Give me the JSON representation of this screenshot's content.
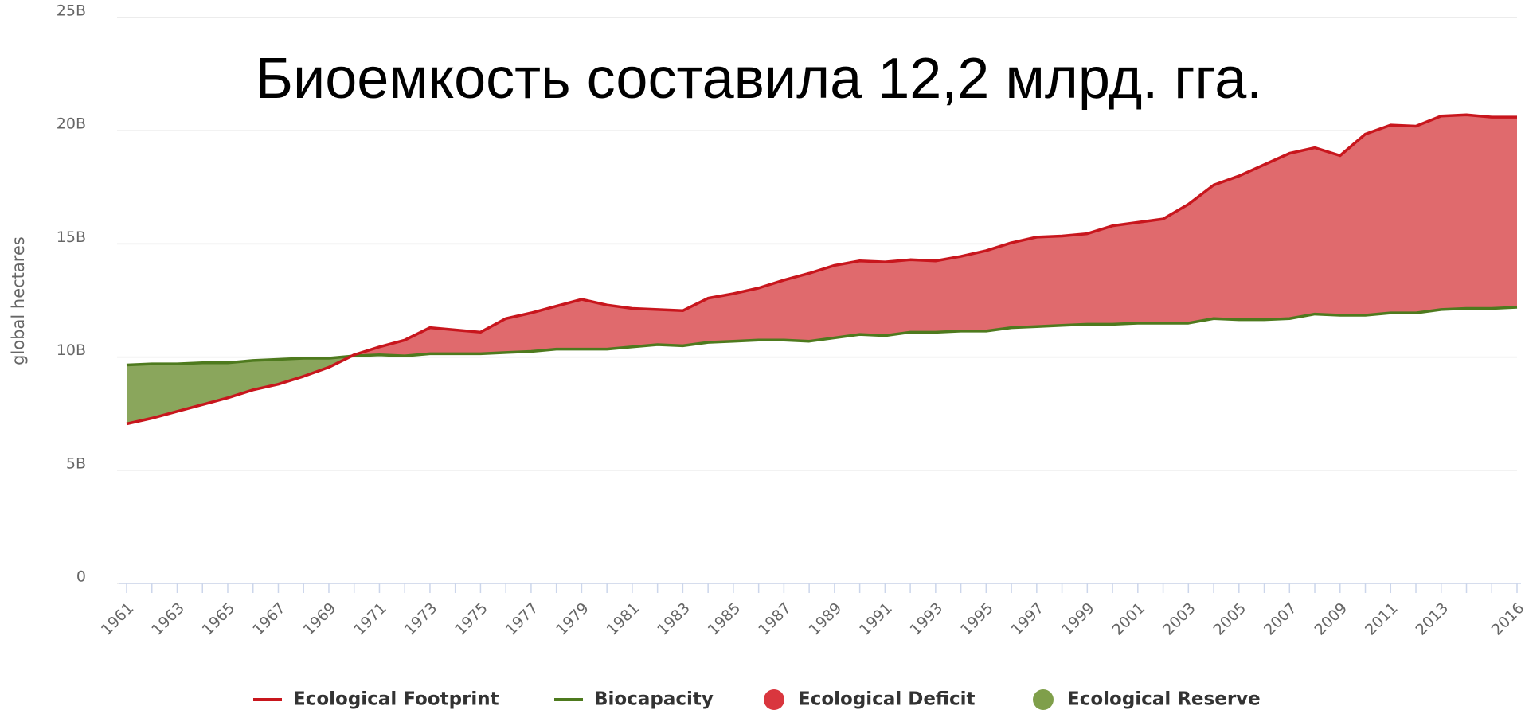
{
  "chart_data": {
    "type": "line",
    "title": "Биоемкость составила 12,2 млрд. гга.",
    "y_label": "global hectares",
    "x": [
      1961,
      1962,
      1963,
      1964,
      1965,
      1966,
      1967,
      1968,
      1969,
      1970,
      1971,
      1972,
      1973,
      1974,
      1975,
      1976,
      1977,
      1978,
      1979,
      1980,
      1981,
      1982,
      1983,
      1984,
      1985,
      1986,
      1987,
      1988,
      1989,
      1990,
      1991,
      1992,
      1993,
      1994,
      1995,
      1996,
      1997,
      1998,
      1999,
      2000,
      2001,
      2002,
      2003,
      2004,
      2005,
      2006,
      2007,
      2008,
      2009,
      2010,
      2011,
      2012,
      2013,
      2014,
      2015,
      2016
    ],
    "series": [
      {
        "name": "Ecological Footprint",
        "color": "#c8161d",
        "values": [
          7050000000.0,
          7300000000.0,
          7600000000.0,
          7900000000.0,
          8200000000.0,
          8550000000.0,
          8800000000.0,
          9150000000.0,
          9550000000.0,
          10100000000.0,
          10450000000.0,
          10750000000.0,
          11300000000.0,
          11200000000.0,
          11100000000.0,
          11700000000.0,
          11950000000.0,
          12250000000.0,
          12550000000.0,
          12300000000.0,
          12150000000.0,
          12100000000.0,
          12050000000.0,
          12600000000.0,
          12800000000.0,
          13050000000.0,
          13400000000.0,
          13700000000.0,
          14050000000.0,
          14250000000.0,
          14200000000.0,
          14300000000.0,
          14250000000.0,
          14450000000.0,
          14700000000.0,
          15050000000.0,
          15300000000.0,
          15350000000.0,
          15450000000.0,
          15800000000.0,
          15950000000.0,
          16100000000.0,
          16750000000.0,
          17600000000.0,
          18000000000.0,
          18500000000.0,
          19000000000.0,
          19250000000.0,
          18900000000.0,
          19850000000.0,
          20250000000.0,
          20200000000.0,
          20650000000.0,
          20700000000.0,
          20600000000.0,
          20600000000.0
        ]
      },
      {
        "name": "Biocapacity",
        "color": "#4e7a1e",
        "values": [
          9650000000.0,
          9700000000.0,
          9700000000.0,
          9750000000.0,
          9750000000.0,
          9850000000.0,
          9900000000.0,
          9950000000.0,
          9950000000.0,
          10050000000.0,
          10100000000.0,
          10050000000.0,
          10150000000.0,
          10150000000.0,
          10150000000.0,
          10200000000.0,
          10250000000.0,
          10350000000.0,
          10350000000.0,
          10350000000.0,
          10450000000.0,
          10550000000.0,
          10500000000.0,
          10650000000.0,
          10700000000.0,
          10750000000.0,
          10750000000.0,
          10700000000.0,
          10850000000.0,
          11000000000.0,
          10950000000.0,
          11100000000.0,
          11100000000.0,
          11150000000.0,
          11150000000.0,
          11300000000.0,
          11350000000.0,
          11400000000.0,
          11450000000.0,
          11450000000.0,
          11500000000.0,
          11500000000.0,
          11500000000.0,
          11700000000.0,
          11650000000.0,
          11650000000.0,
          11700000000.0,
          11900000000.0,
          11850000000.0,
          11850000000.0,
          11950000000.0,
          11950000000.0,
          12100000000.0,
          12150000000.0,
          12150000000.0,
          12200000000.0
        ]
      }
    ],
    "fill_between": [
      {
        "name": "Ecological Deficit",
        "color": "#e06a6d",
        "legend_color": "#d9363e"
      },
      {
        "name": "Ecological Reserve",
        "color": "#8aa65c",
        "legend_color": "#7f9f4a"
      }
    ],
    "xlim": [
      1961,
      2016
    ],
    "xticks": [
      1961,
      1963,
      1965,
      1967,
      1969,
      1971,
      1973,
      1975,
      1977,
      1979,
      1981,
      1983,
      1985,
      1987,
      1989,
      1991,
      1993,
      1995,
      1997,
      1999,
      2001,
      2003,
      2005,
      2007,
      2009,
      2011,
      2013,
      2016
    ],
    "ylim": [
      0,
      25000000000.0
    ],
    "yticks": [
      {
        "value": 0,
        "label": "0"
      },
      {
        "value": 5000000000.0,
        "label": "5B"
      },
      {
        "value": 10000000000.0,
        "label": "10B"
      },
      {
        "value": 15000000000.0,
        "label": "15B"
      },
      {
        "value": 20000000000.0,
        "label": "20B"
      },
      {
        "value": 25000000000.0,
        "label": "25B"
      }
    ],
    "grid": true,
    "legend": "bottom"
  }
}
